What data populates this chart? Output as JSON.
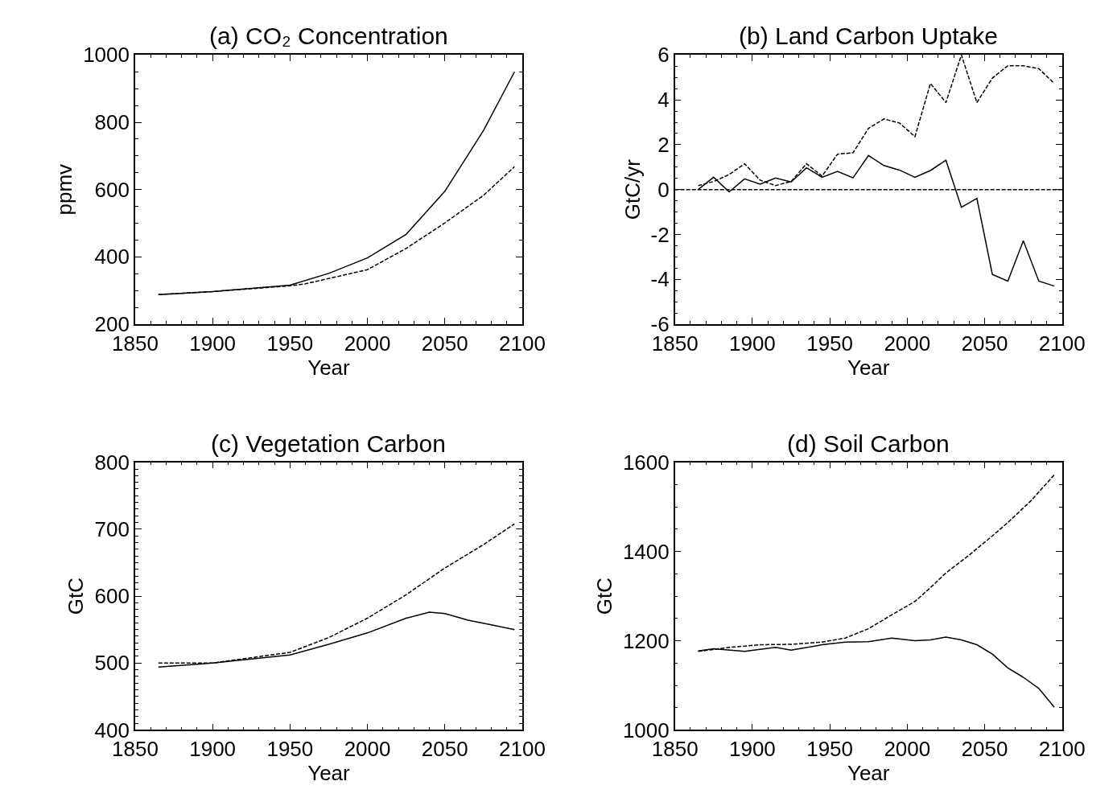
{
  "chart_data": [
    {
      "type": "line",
      "title": "(a) CO₂ Concentration",
      "xlabel": "Year",
      "ylabel": "ppmv",
      "xlim": [
        1850,
        2100
      ],
      "xticks": [
        1850,
        1900,
        1950,
        2000,
        2050,
        2100
      ],
      "ylim": [
        200,
        1000
      ],
      "yticks": [
        200,
        400,
        600,
        800,
        1000
      ],
      "series": [
        {
          "color": "#000000",
          "line_style": "solid",
          "x": [
            1865,
            1900,
            1950,
            1975,
            2000,
            2025,
            2050,
            2075,
            2095
          ],
          "values": [
            288,
            297,
            316,
            351,
            397,
            467,
            595,
            776,
            950
          ]
        },
        {
          "color": "#000000",
          "line_style": "dashed",
          "x": [
            1865,
            1900,
            1950,
            1960,
            2000,
            2025,
            2050,
            2075,
            2095
          ],
          "values": [
            288,
            297,
            314,
            320,
            362,
            425,
            501,
            583,
            668
          ]
        }
      ]
    },
    {
      "type": "line",
      "title": "(b) Land Carbon Uptake",
      "xlabel": "Year",
      "ylabel": "GtC/yr",
      "xlim": [
        1850,
        2100
      ],
      "xticks": [
        1850,
        1900,
        1950,
        2000,
        2050,
        2100
      ],
      "ylim": [
        -6,
        6
      ],
      "yticks": [
        -6,
        -4,
        -2,
        0,
        2,
        4,
        6
      ],
      "ref_lines": [
        {
          "axis": "y",
          "value": 0,
          "line_style": "dashed",
          "color": "#000000"
        }
      ],
      "series": [
        {
          "color": "#000000",
          "line_style": "solid",
          "x": [
            1865,
            1875,
            1885,
            1895,
            1905,
            1915,
            1925,
            1935,
            1945,
            1955,
            1965,
            1975,
            1985,
            1995,
            2005,
            2015,
            2025,
            2035,
            2045,
            2055,
            2065,
            2075,
            2085,
            2095
          ],
          "values": [
            0,
            0.55,
            -0.1,
            0.48,
            0.24,
            0.52,
            0.34,
            0.97,
            0.55,
            0.81,
            0.52,
            1.52,
            1.07,
            0.87,
            0.55,
            0.85,
            1.31,
            -0.79,
            -0.39,
            -3.78,
            -4.08,
            -2.28,
            -4.08,
            -4.3
          ]
        },
        {
          "color": "#000000",
          "line_style": "dashed",
          "x": [
            1865,
            1875,
            1885,
            1895,
            1905,
            1915,
            1925,
            1935,
            1945,
            1955,
            1965,
            1975,
            1985,
            1995,
            2005,
            2015,
            2025,
            2035,
            2045,
            2055,
            2065,
            2075,
            2085,
            2095
          ],
          "values": [
            0.18,
            0.36,
            0.67,
            1.15,
            0.42,
            0.18,
            0.36,
            1.15,
            0.6,
            1.58,
            1.64,
            2.73,
            3.15,
            2.97,
            2.36,
            4.73,
            3.88,
            6.0,
            3.88,
            4.97,
            5.52,
            5.52,
            5.39,
            4.73
          ]
        }
      ]
    },
    {
      "type": "line",
      "title": "(c) Vegetation Carbon",
      "xlabel": "Year",
      "ylabel": "GtC",
      "xlim": [
        1850,
        2100
      ],
      "xticks": [
        1850,
        1900,
        1950,
        2000,
        2050,
        2100
      ],
      "ylim": [
        400,
        800
      ],
      "yticks": [
        400,
        500,
        600,
        700,
        800
      ],
      "series": [
        {
          "color": "#000000",
          "line_style": "solid",
          "x": [
            1865,
            1900,
            1950,
            1975,
            2000,
            2025,
            2040,
            2050,
            2065,
            2080,
            2095
          ],
          "values": [
            494,
            500,
            512,
            528,
            545,
            567,
            576,
            574,
            564,
            557,
            550
          ]
        },
        {
          "color": "#000000",
          "line_style": "dashed",
          "x": [
            1865,
            1900,
            1950,
            1975,
            2000,
            2025,
            2050,
            2075,
            2095
          ],
          "values": [
            500,
            500,
            516,
            538,
            567,
            602,
            642,
            677,
            708
          ]
        }
      ]
    },
    {
      "type": "line",
      "title": "(d) Soil Carbon",
      "xlabel": "Year",
      "ylabel": "GtC",
      "xlim": [
        1850,
        2100
      ],
      "xticks": [
        1850,
        1900,
        1950,
        2000,
        2050,
        2100
      ],
      "ylim": [
        1000,
        1600
      ],
      "yticks": [
        1000,
        1200,
        1400,
        1600
      ],
      "series": [
        {
          "color": "#000000",
          "line_style": "solid",
          "x": [
            1865,
            1875,
            1895,
            1915,
            1925,
            1945,
            1960,
            1975,
            1990,
            2005,
            2015,
            2025,
            2035,
            2045,
            2055,
            2065,
            2075,
            2085,
            2095
          ],
          "values": [
            1177,
            1182,
            1176,
            1185,
            1179,
            1191,
            1197,
            1198,
            1206,
            1200,
            1202,
            1208,
            1202,
            1191,
            1170,
            1139,
            1118,
            1093,
            1051
          ]
        },
        {
          "color": "#000000",
          "line_style": "dashed",
          "x": [
            1865,
            1885,
            1905,
            1925,
            1945,
            1960,
            1975,
            1990,
            2005,
            2015,
            2025,
            2040,
            2055,
            2065,
            2080,
            2095
          ],
          "values": [
            1176,
            1185,
            1191,
            1192,
            1197,
            1206,
            1227,
            1258,
            1288,
            1319,
            1352,
            1392,
            1435,
            1465,
            1514,
            1572
          ]
        }
      ]
    }
  ]
}
